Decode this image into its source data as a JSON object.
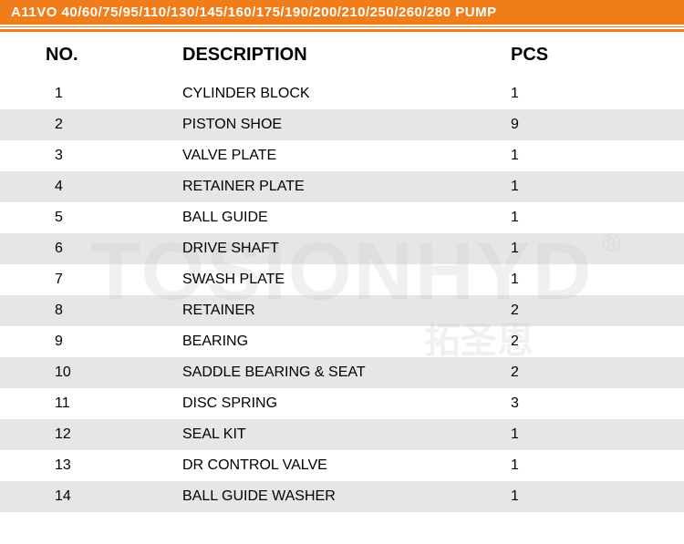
{
  "title": "A11VO 40/60/75/95/110/130/145/160/175/190/200/210/250/260/280  PUMP",
  "watermark": {
    "main": "TOSIONHYD",
    "sub": "拓圣恩",
    "reg": "®"
  },
  "colors": {
    "orange": "#f07d1a",
    "stripe": "rgba(200,200,200,0.45)",
    "text": "#000000",
    "watermark": "rgba(0,0,0,0.06)"
  },
  "headers": {
    "no": "NO.",
    "desc": "DESCRIPTION",
    "pcs": "PCS"
  },
  "rows": [
    {
      "no": "1",
      "desc": "CYLINDER BLOCK",
      "pcs": "1"
    },
    {
      "no": "2",
      "desc": "PISTON SHOE",
      "pcs": "9"
    },
    {
      "no": "3",
      "desc": "VALVE PLATE",
      "pcs": "1"
    },
    {
      "no": "4",
      "desc": "RETAINER PLATE",
      "pcs": "1"
    },
    {
      "no": "5",
      "desc": "BALL GUIDE",
      "pcs": "1"
    },
    {
      "no": "6",
      "desc": "DRIVE SHAFT",
      "pcs": "1"
    },
    {
      "no": "7",
      "desc": "SWASH PLATE",
      "pcs": "1"
    },
    {
      "no": "8",
      "desc": "RETAINER",
      "pcs": "2"
    },
    {
      "no": "9",
      "desc": "BEARING",
      "pcs": "2"
    },
    {
      "no": "10",
      "desc": "SADDLE BEARING & SEAT",
      "pcs": "2"
    },
    {
      "no": "11",
      "desc": "DISC SPRING",
      "pcs": "3"
    },
    {
      "no": "12",
      "desc": "SEAL KIT",
      "pcs": "1"
    },
    {
      "no": "13",
      "desc": "DR CONTROL VALVE",
      "pcs": "1"
    },
    {
      "no": "14",
      "desc": "BALL GUIDE WASHER",
      "pcs": "1"
    }
  ]
}
